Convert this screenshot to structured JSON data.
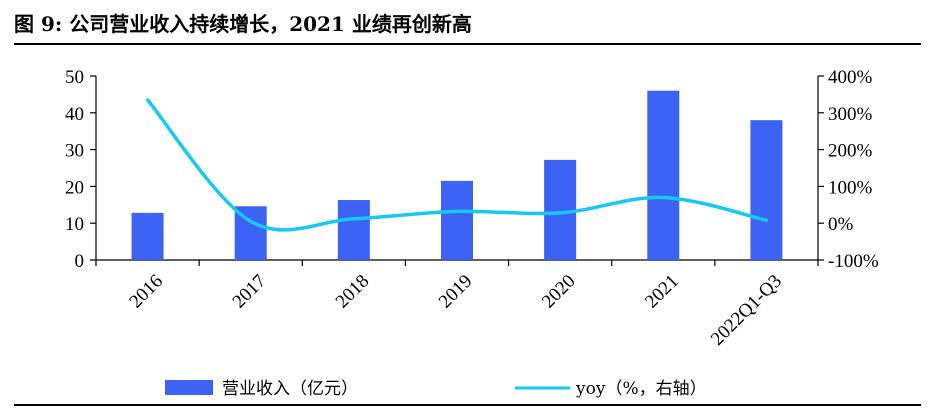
{
  "page": {
    "title": "图 9: 公司营业收入持续增长，2021 业绩再创新高"
  },
  "chart_data": {
    "type": "bar",
    "categories": [
      "2016",
      "2017",
      "2018",
      "2019",
      "2020",
      "2021",
      "2022Q1-Q3"
    ],
    "series": [
      {
        "name": "营业收入（亿元）",
        "type": "bar",
        "axis": "left",
        "values": [
          12.8,
          14.6,
          16.3,
          21.5,
          27.2,
          46.0,
          38.0
        ],
        "color": "#3D63F4"
      },
      {
        "name": "yoy（%，右轴）",
        "type": "line",
        "axis": "right",
        "values": [
          335,
          5,
          12,
          32,
          28,
          70,
          8
        ],
        "color": "#16C9F2"
      }
    ],
    "y_left": {
      "min": 0,
      "max": 50,
      "ticks": [
        0,
        10,
        20,
        30,
        40,
        50
      ],
      "tick_labels": [
        "0",
        "10",
        "20",
        "30",
        "40",
        "50"
      ]
    },
    "y_right": {
      "min": -100,
      "max": 400,
      "ticks": [
        -100,
        0,
        100,
        200,
        300,
        400
      ],
      "tick_labels": [
        "-100%",
        "0%",
        "100%",
        "200%",
        "300%",
        "400%"
      ]
    },
    "grid": false,
    "legend": "bottom"
  }
}
